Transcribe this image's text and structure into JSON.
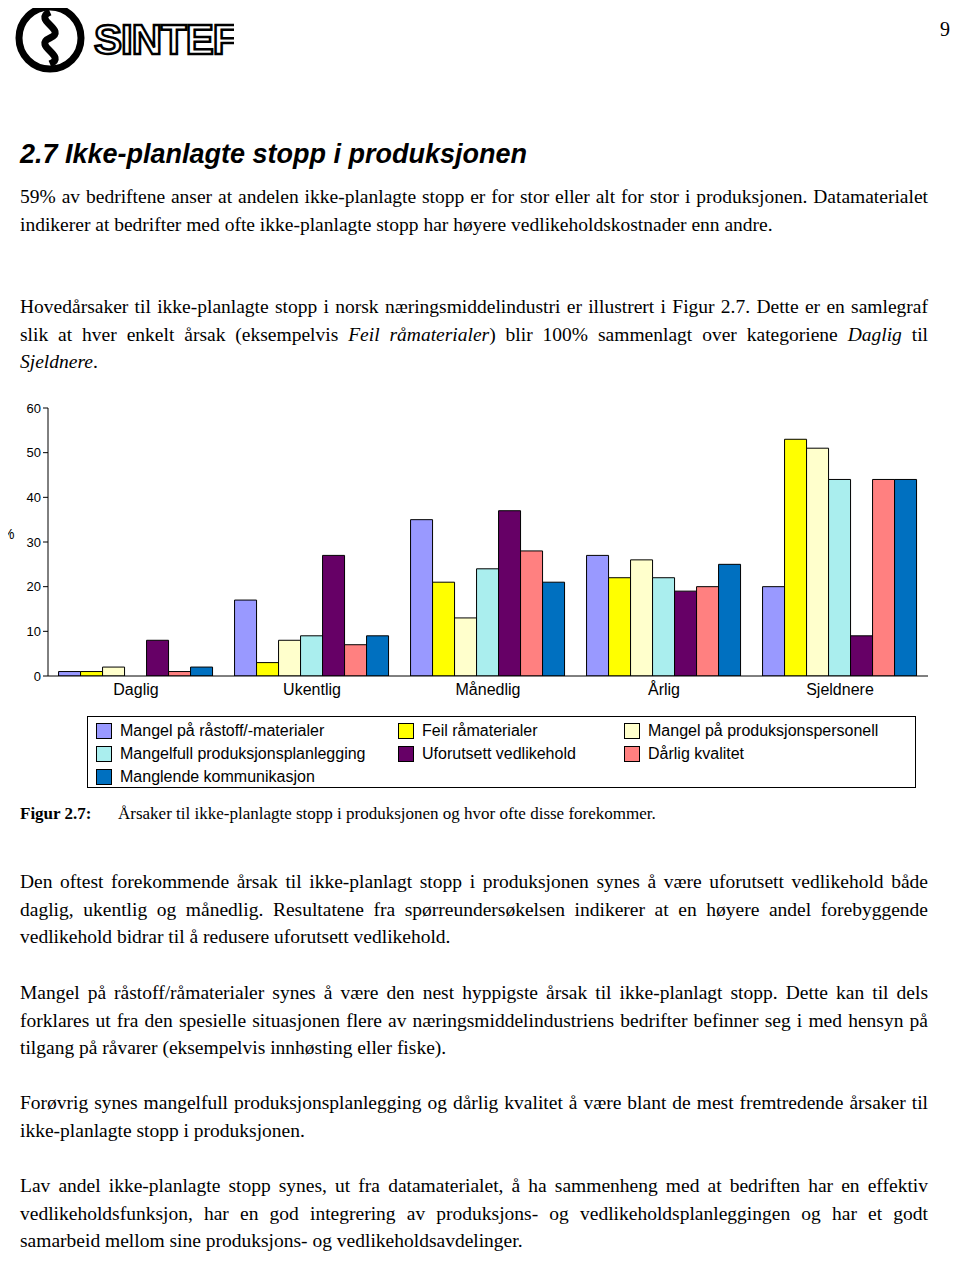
{
  "header": {
    "logo": "SINTEF",
    "page_number": "9"
  },
  "heading": "2.7 Ikke-planlagte stopp i produksjonen",
  "paragraphs_before": [
    [
      {
        "text": "59% av bedriftene anser at andelen ikke-planlagte stopp er for stor eller alt for stor i produksjonen. Datamaterialet indikerer at bedrifter med ofte ikke-planlagte stopp har høyere vedlikeholdskostnader enn andre.",
        "italic": false
      }
    ],
    [
      {
        "text": "Hovedårsaker til ikke-planlagte stopp i norsk næringsmiddelindustri er illustrert i Figur 2.7. Dette er en samlegraf slik at hver enkelt årsak (eksempelvis ",
        "italic": false
      },
      {
        "text": "Feil råmaterialer",
        "italic": true
      },
      {
        "text": ") blir 100% sammenlagt over kategoriene ",
        "italic": false
      },
      {
        "text": "Daglig",
        "italic": true
      },
      {
        "text": " til ",
        "italic": false
      },
      {
        "text": "Sjeldnere",
        "italic": true
      },
      {
        "text": ".",
        "italic": false
      }
    ]
  ],
  "chart_data": {
    "type": "bar",
    "y_label": "%",
    "categories": [
      "Daglig",
      "Ukentlig",
      "Månedlig",
      "Årlig",
      "Sjeldnere"
    ],
    "series": [
      {
        "name": "Mangel på råstoff/-materialer",
        "color": "#9999ff",
        "values": [
          1,
          17,
          35,
          27,
          20
        ]
      },
      {
        "name": "Feil råmaterialer",
        "color": "#ffff00",
        "values": [
          1,
          3,
          21,
          22,
          53
        ]
      },
      {
        "name": "Mangel på produksjonspersonell",
        "color": "#ffffcc",
        "values": [
          2,
          8,
          13,
          26,
          51
        ]
      },
      {
        "name": "Mangelfull produksjonsplanlegging",
        "color": "#aaeeee",
        "values": [
          0,
          9,
          24,
          22,
          44
        ]
      },
      {
        "name": "Uforutsett vedlikehold",
        "color": "#660066",
        "values": [
          8,
          27,
          37,
          19,
          9
        ]
      },
      {
        "name": "Dårlig kvalitet",
        "color": "#ff8080",
        "values": [
          1,
          7,
          28,
          20,
          44
        ]
      },
      {
        "name": "Manglende kommunikasjon",
        "color": "#0070c0",
        "values": [
          2,
          9,
          21,
          25,
          44
        ]
      }
    ],
    "ylim": [
      0,
      60
    ],
    "yticks": [
      0,
      10,
      20,
      30,
      40,
      50,
      60
    ],
    "grid": false,
    "legend": "bottom"
  },
  "caption": {
    "label": "Figur 2.7:",
    "text": "Årsaker til ikke-planlagte stopp i produksjonen og hvor ofte disse forekommer."
  },
  "paragraphs_after": [
    [
      {
        "text": "Den oftest forekommende årsak til ikke-planlagt stopp i produksjonen synes å være uforutsett vedlikehold både daglig, ukentlig og månedlig. Resultatene fra spørreundersøkelsen indikerer at en høyere andel forebyggende vedlikehold bidrar til å redusere uforutsett vedlikehold.",
        "italic": false
      }
    ],
    [
      {
        "text": "Mangel på råstoff/råmaterialer synes å være den nest hyppigste årsak til ikke-planlagt stopp. Dette kan til dels forklares ut fra den spesielle situasjonen flere av næringsmiddelindustriens bedrifter befinner seg i med hensyn på tilgang på råvarer (eksempelvis innhøsting eller fiske).",
        "italic": false
      }
    ],
    [
      {
        "text": "Forøvrig synes mangelfull produksjonsplanlegging og dårlig kvalitet å være blant de mest fremtredende årsaker til ikke-planlagte stopp i produksjonen.",
        "italic": false
      }
    ],
    [
      {
        "text": "Lav andel ikke-planlagte stopp synes, ut fra datamaterialet, å ha sammenheng med at bedriften har en effektiv vedlikeholdsfunksjon, har en god integrering av produksjons- og vedlikeholdsplanleggingen og har et godt samarbeid mellom sine produksjons- og vedlikeholdsavdelinger.",
        "italic": false
      }
    ]
  ]
}
